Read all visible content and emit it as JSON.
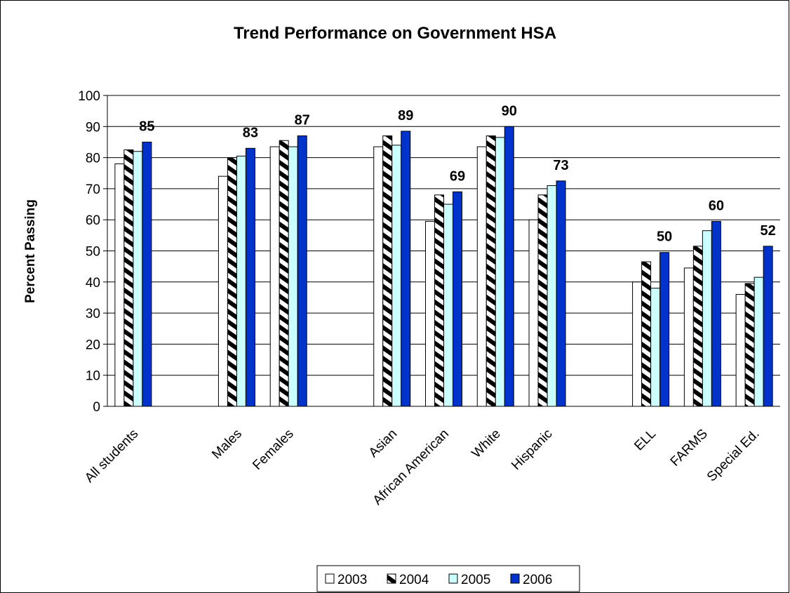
{
  "chart_data": {
    "type": "bar",
    "title": "Trend Performance on Government HSA",
    "xlabel": "",
    "ylabel": "Percent Passing",
    "ylim": [
      0,
      100
    ],
    "yticks": [
      0,
      10,
      20,
      30,
      40,
      50,
      60,
      70,
      80,
      90,
      100
    ],
    "grid": true,
    "legend_position": "bottom",
    "categories": [
      "All students",
      "",
      "Males",
      "Females",
      "",
      "Asian",
      "African American",
      "White",
      "Hispanic",
      "",
      "ELL",
      "FARMS",
      "Special Ed."
    ],
    "series": [
      {
        "name": "2003",
        "color": "#ffffff",
        "pattern": "none",
        "values": [
          78,
          null,
          74,
          83.5,
          null,
          83.5,
          59.5,
          83.5,
          60,
          null,
          40,
          44.5,
          36
        ]
      },
      {
        "name": "2004",
        "color": "#000000",
        "pattern": "diagonal-stripes",
        "values": [
          82.5,
          null,
          80,
          85.5,
          null,
          87,
          68,
          87,
          68,
          null,
          46.5,
          51.5,
          39.5
        ]
      },
      {
        "name": "2005",
        "color": "#ccffff",
        "pattern": "none",
        "values": [
          82,
          null,
          80.5,
          83.5,
          null,
          84,
          65,
          86.5,
          71,
          null,
          38,
          56.5,
          41.5
        ]
      },
      {
        "name": "2006",
        "color": "#0033cc",
        "pattern": "none",
        "values": [
          85,
          null,
          83,
          87,
          null,
          88.5,
          69,
          90,
          72.5,
          null,
          49.5,
          59.5,
          51.5
        ]
      }
    ],
    "data_labels": [
      "85",
      "",
      "83",
      "87",
      "",
      "89",
      "69",
      "90",
      "73",
      "",
      "50",
      "60",
      "52"
    ]
  }
}
